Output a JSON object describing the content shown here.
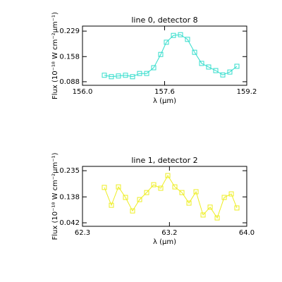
{
  "chart_data": [
    {
      "type": "line",
      "title": "line 0, detector 8",
      "xlabel": "λ (μm)",
      "ylabel": "Flux (10⁻¹⁸ W cm⁻²μm⁻¹)",
      "color": "#33ddcc",
      "x": [
        156.426,
        156.563,
        156.7,
        156.838,
        156.975,
        157.112,
        157.25,
        157.387,
        157.524,
        157.634,
        157.772,
        157.909,
        158.046,
        158.184,
        158.321,
        158.458,
        158.596,
        158.733,
        158.87,
        159.008
      ],
      "values": [
        0.106,
        0.102,
        0.104,
        0.106,
        0.102,
        0.111,
        0.111,
        0.127,
        0.164,
        0.198,
        0.217,
        0.219,
        0.206,
        0.17,
        0.139,
        0.129,
        0.119,
        0.107,
        0.115,
        0.131
      ],
      "xlim": [
        156.0,
        159.2
      ],
      "xticks": [
        {
          "value": 156.0,
          "label": "156.0"
        },
        157.6,
        159.2
      ],
      "ylim": [
        0.078,
        0.243
      ],
      "yticks": [
        0.088,
        0.158,
        0.229
      ]
    },
    {
      "type": "line",
      "title": "line 1, detector 2",
      "xlabel": "λ (μm)",
      "ylabel": "Flux (10⁻¹⁸ W cm⁻²μm⁻¹)",
      "color": "#eeee22",
      "x": [
        62.526,
        62.599,
        62.672,
        62.745,
        62.818,
        62.891,
        62.964,
        63.037,
        63.11,
        63.183,
        63.256,
        63.329,
        63.402,
        63.475,
        63.548,
        63.621,
        63.694,
        63.767,
        63.84,
        63.898
      ],
      "values": [
        0.173,
        0.107,
        0.175,
        0.136,
        0.086,
        0.128,
        0.154,
        0.183,
        0.17,
        0.217,
        0.175,
        0.154,
        0.115,
        0.157,
        0.071,
        0.1,
        0.06,
        0.136,
        0.149,
        0.097
      ],
      "xlim": [
        62.3,
        64.0
      ],
      "xticks": [
        62.3,
        63.2,
        {
          "value": 64.0,
          "label": "64.0"
        }
      ],
      "ylim": [
        0.029,
        0.251
      ],
      "yticks": [
        0.042,
        0.138,
        0.235
      ]
    }
  ]
}
